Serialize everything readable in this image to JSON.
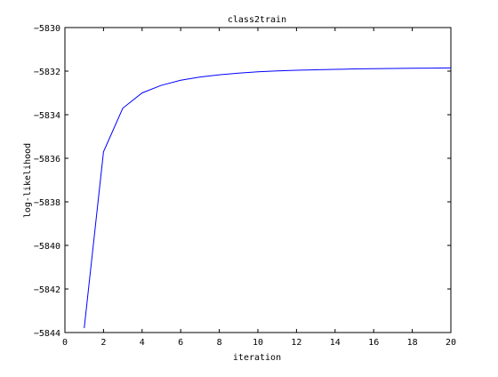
{
  "chart_data": {
    "type": "line",
    "title": "class2train",
    "xlabel": "iteration",
    "ylabel": "log-likelihood",
    "xlim": [
      0,
      20
    ],
    "ylim": [
      -5844,
      -5830
    ],
    "xticks": [
      0,
      2,
      4,
      6,
      8,
      10,
      12,
      14,
      16,
      18,
      20
    ],
    "yticks": [
      -5844,
      -5842,
      -5840,
      -5838,
      -5836,
      -5834,
      -5832,
      -5830
    ],
    "grid": false,
    "legend": "none",
    "line_color": "#0000ff",
    "series": [
      {
        "x": [
          1,
          2,
          3,
          4,
          5,
          6,
          7,
          8,
          9,
          10,
          11,
          12,
          13,
          14,
          15,
          16,
          17,
          18,
          19,
          20
        ],
        "y": [
          -5843.8,
          -5835.7,
          -5833.7,
          -5833.0,
          -5832.65,
          -5832.42,
          -5832.27,
          -5832.17,
          -5832.09,
          -5832.03,
          -5831.99,
          -5831.96,
          -5831.94,
          -5831.92,
          -5831.9,
          -5831.89,
          -5831.88,
          -5831.87,
          -5831.86,
          -5831.85
        ]
      }
    ]
  }
}
